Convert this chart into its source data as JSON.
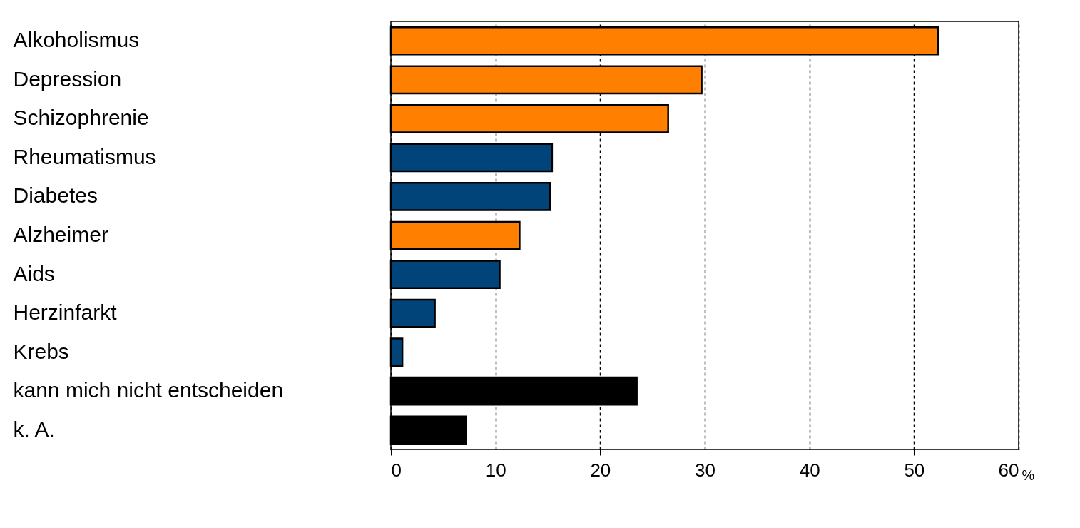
{
  "chart_data": {
    "type": "bar",
    "orientation": "horizontal",
    "xlabel": "%",
    "categories": [
      "Alkoholismus",
      "Depression",
      "Schizophrenie",
      "Rheumatismus",
      "Diabetes",
      "Alzheimer",
      "Aids",
      "Herzinfarkt",
      "Krebs",
      "kann mich nicht entscheiden",
      "k. A."
    ],
    "values": [
      52.3,
      29.7,
      26.5,
      15.4,
      15.2,
      12.3,
      10.4,
      4.2,
      1.1,
      23.5,
      7.2
    ],
    "colors": [
      "#ff8000",
      "#ff8000",
      "#ff8000",
      "#004479",
      "#004479",
      "#ff8000",
      "#004479",
      "#004479",
      "#004479",
      "#000000",
      "#000000"
    ],
    "xlim": [
      0,
      60
    ],
    "xticks": [
      0,
      10,
      20,
      30,
      40,
      50,
      60
    ],
    "grid": "x"
  }
}
